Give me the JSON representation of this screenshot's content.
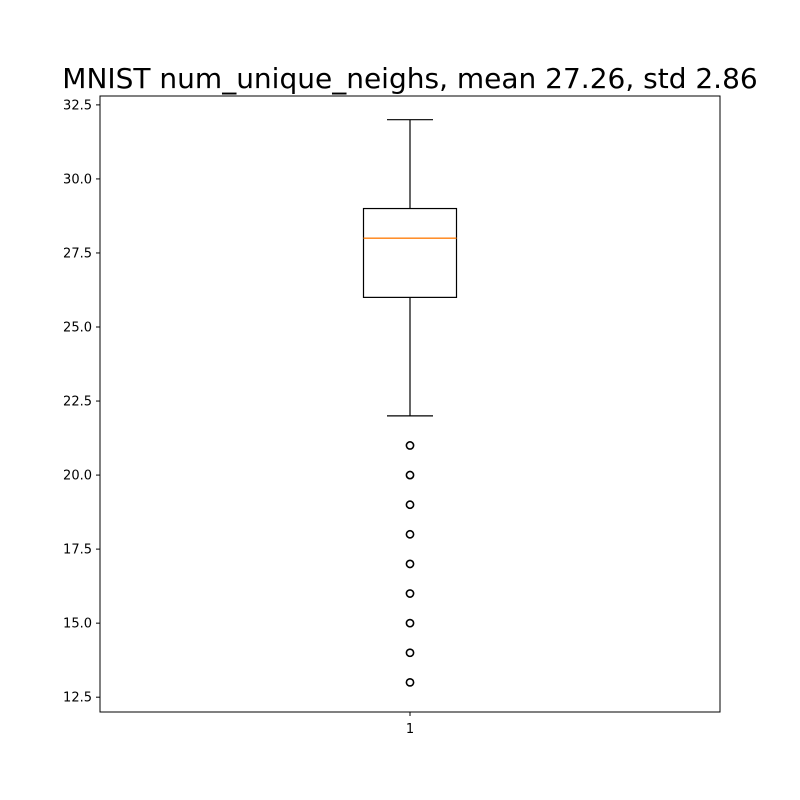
{
  "chart_data": {
    "type": "box",
    "title": "MNIST num_unique_neighs, mean 27.26, std 2.86",
    "xlabel": "",
    "ylabel": "",
    "categories": [
      "1"
    ],
    "ylim": [
      12.0,
      32.8
    ],
    "yticks": [
      "12.5",
      "15.0",
      "17.5",
      "20.0",
      "22.5",
      "25.0",
      "27.5",
      "30.0",
      "32.5"
    ],
    "xticks": [
      "1"
    ],
    "box": {
      "whisker_low": 22,
      "q1": 26,
      "median": 28,
      "q3": 29,
      "whisker_high": 32
    },
    "outliers": [
      13,
      14,
      15,
      16,
      17,
      18,
      19,
      20,
      21
    ],
    "colors": {
      "box": "#000000",
      "median": "#ff7f0e",
      "outlier": "#000000"
    },
    "grid": false
  }
}
